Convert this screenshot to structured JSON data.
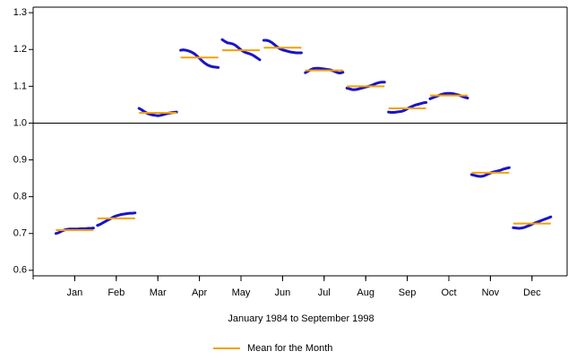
{
  "chart_data": {
    "type": "seasonal-subseries",
    "x_label": "January 1984  to  September 1998",
    "categories": [
      "Jan",
      "Feb",
      "Mar",
      "Apr",
      "May",
      "Jun",
      "Jul",
      "Aug",
      "Sep",
      "Oct",
      "Nov",
      "Dec"
    ],
    "subseries_color": "#1a14c8",
    "subseries_values": [
      [
        0.7,
        0.702,
        0.706,
        0.709,
        0.711,
        0.712,
        0.712,
        0.712,
        0.712,
        0.713,
        0.713,
        0.713,
        0.714,
        0.714,
        0.715
      ],
      [
        0.722,
        0.725,
        0.729,
        0.733,
        0.737,
        0.741,
        0.745,
        0.748,
        0.75,
        0.752,
        0.753,
        0.754,
        0.755,
        0.755,
        0.756
      ],
      [
        1.04,
        1.036,
        1.031,
        1.027,
        1.024,
        1.022,
        1.021,
        1.02,
        1.021,
        1.023,
        1.025,
        1.027,
        1.028,
        1.029,
        1.03
      ],
      [
        1.198,
        1.199,
        1.198,
        1.196,
        1.193,
        1.189,
        1.183,
        1.176,
        1.169,
        1.163,
        1.158,
        1.155,
        1.153,
        1.152,
        1.151
      ],
      [
        1.227,
        1.222,
        1.218,
        1.217,
        1.215,
        1.211,
        1.205,
        1.199,
        1.194,
        1.191,
        1.189,
        1.186,
        1.182,
        1.177,
        1.172
      ],
      [
        1.225,
        1.225,
        1.223,
        1.219,
        1.213,
        1.207,
        1.202,
        1.199,
        1.197,
        1.195,
        1.193,
        1.192,
        1.191,
        1.191,
        1.191
      ],
      [
        1.137,
        1.141,
        1.145,
        1.148,
        1.149,
        1.149,
        1.148,
        1.147,
        1.146,
        1.145,
        1.143,
        1.14,
        1.137,
        1.136,
        1.138
      ],
      [
        1.095,
        1.093,
        1.091,
        1.091,
        1.092,
        1.094,
        1.096,
        1.098,
        1.1,
        1.102,
        1.105,
        1.108,
        1.11,
        1.111,
        1.111
      ],
      [
        1.03,
        1.029,
        1.029,
        1.03,
        1.031,
        1.032,
        1.035,
        1.039,
        1.043,
        1.046,
        1.049,
        1.051,
        1.053,
        1.055,
        1.056
      ],
      [
        1.066,
        1.069,
        1.072,
        1.075,
        1.078,
        1.08,
        1.081,
        1.081,
        1.08,
        1.078,
        1.076,
        1.073,
        1.07,
        1.068
      ],
      [
        0.86,
        0.858,
        0.856,
        0.855,
        0.856,
        0.859,
        0.863,
        0.866,
        0.868,
        0.87,
        0.872,
        0.875,
        0.877,
        0.879
      ],
      [
        0.716,
        0.715,
        0.714,
        0.715,
        0.717,
        0.72,
        0.723,
        0.727,
        0.73,
        0.733,
        0.736,
        0.739,
        0.742,
        0.745
      ]
    ],
    "series": [
      {
        "name": "Mean for the Month",
        "color": "#f5a000",
        "values": [
          0.709,
          0.741,
          1.028,
          1.178,
          1.198,
          1.205,
          1.143,
          1.1,
          1.04,
          1.075,
          0.865,
          0.727
        ]
      }
    ],
    "ref_line": 1.0,
    "ylim": [
      0.585,
      1.315
    ],
    "yticks": [
      0.6,
      0.7,
      0.8,
      0.9,
      {
        "value": 1,
        "label": "1.0"
      },
      1.1,
      1.2,
      1.3
    ]
  }
}
